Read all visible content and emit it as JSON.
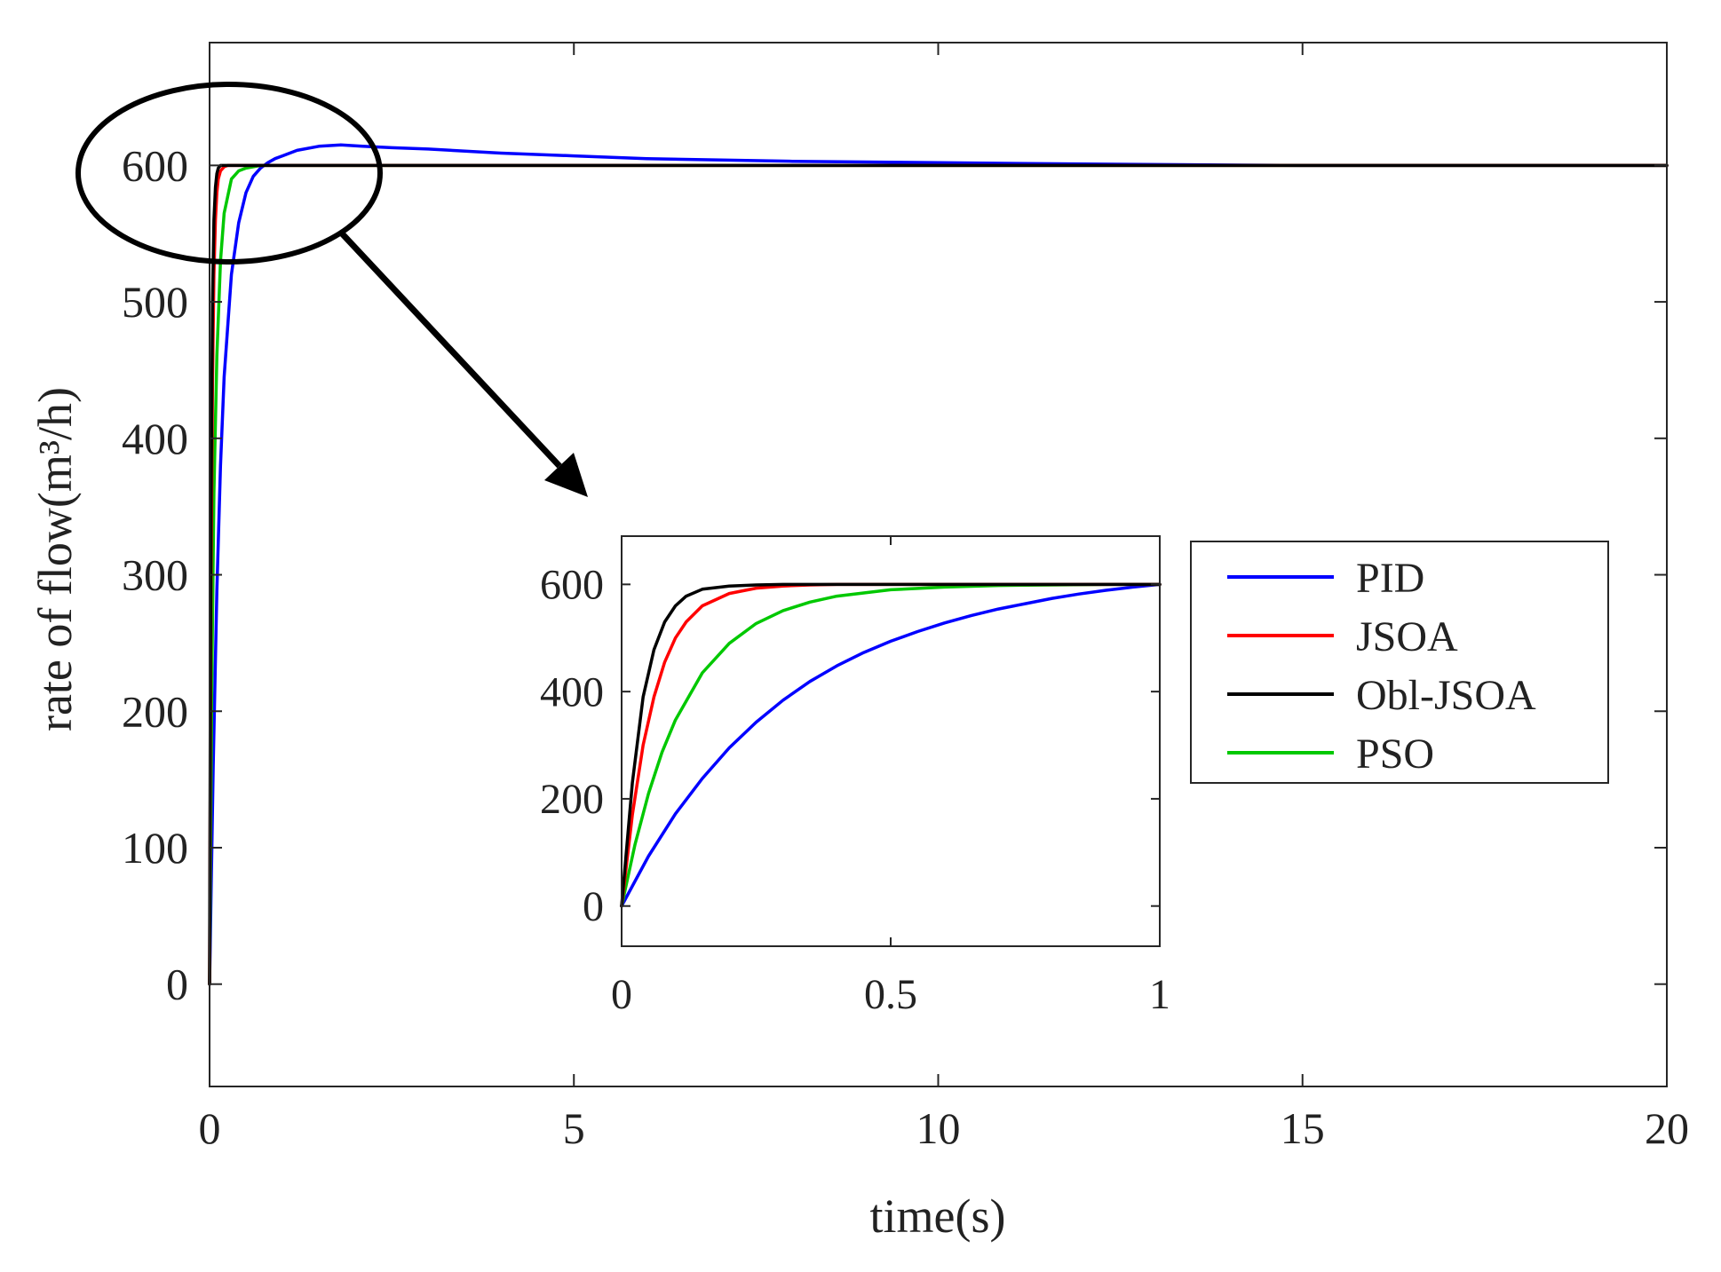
{
  "colors": {
    "PID": "#0000ff",
    "JSOA": "#ff0000",
    "Obl-JSOA": "#000000",
    "PSO": "#00c800"
  },
  "chart_data": [
    {
      "id": "main",
      "type": "line",
      "title": "",
      "xlabel": "time(s)",
      "ylabel": "rate of flow(m³/h)",
      "xlim": [
        0,
        20
      ],
      "ylim": [
        -75,
        690
      ],
      "xticks": [
        0,
        5,
        10,
        15,
        20
      ],
      "xtick_labels": [
        "0",
        "5",
        "10",
        "15",
        "20"
      ],
      "yticks": [
        0,
        100,
        200,
        300,
        400,
        500,
        600
      ],
      "ytick_labels": [
        "0",
        "100",
        "200",
        "300",
        "400",
        "500",
        "600"
      ],
      "grid": false,
      "series": [
        {
          "name": "PID",
          "x": [
            0,
            0.05,
            0.1,
            0.15,
            0.2,
            0.3,
            0.4,
            0.5,
            0.6,
            0.7,
            0.8,
            0.9,
            1.0,
            1.2,
            1.5,
            1.8,
            2.1,
            2.5,
            3,
            4,
            5,
            6,
            8,
            10,
            12,
            15,
            20
          ],
          "y": [
            0,
            160,
            288,
            380,
            445,
            520,
            558,
            580,
            592,
            598,
            602,
            605,
            607,
            611,
            614,
            615,
            614,
            613,
            612,
            609,
            607,
            605,
            603,
            602,
            601,
            600,
            600
          ]
        },
        {
          "name": "JSOA",
          "x": [
            0,
            0.02,
            0.04,
            0.06,
            0.08,
            0.1,
            0.12,
            0.15,
            0.2,
            0.25,
            0.3,
            20
          ],
          "y": [
            0,
            290,
            440,
            520,
            560,
            580,
            590,
            596,
            599,
            600,
            600,
            600
          ]
        },
        {
          "name": "Obl-JSOA",
          "x": [
            0,
            0.01,
            0.02,
            0.04,
            0.06,
            0.08,
            0.1,
            0.12,
            0.15,
            0.2,
            20
          ],
          "y": [
            0,
            200,
            340,
            500,
            560,
            584,
            594,
            598,
            600,
            600,
            600
          ]
        },
        {
          "name": "PSO",
          "x": [
            0,
            0.03,
            0.06,
            0.1,
            0.15,
            0.2,
            0.3,
            0.4,
            0.5,
            0.7,
            1.0,
            20
          ],
          "y": [
            0,
            220,
            360,
            460,
            530,
            565,
            590,
            596,
            598,
            600,
            600,
            600
          ]
        }
      ],
      "legend": {
        "entries": [
          "PID",
          "JSOA",
          "Obl-JSOA",
          "PSO"
        ],
        "placement": "center-right"
      },
      "annotation": "ellipse around initial rise near y=600 with arrow pointing to inset"
    },
    {
      "id": "inset",
      "type": "line",
      "title": "",
      "xlabel": "",
      "ylabel": "",
      "xlim": [
        0,
        1
      ],
      "ylim": [
        -75,
        690
      ],
      "xticks": [
        0,
        0.5,
        1
      ],
      "xtick_labels": [
        "0",
        "0.5",
        "1"
      ],
      "yticks": [
        0,
        200,
        400,
        600
      ],
      "ytick_labels": [
        "0",
        "200",
        "400",
        "600"
      ],
      "grid": false,
      "series": [
        {
          "name": "PID",
          "x": [
            0,
            0.05,
            0.1,
            0.15,
            0.2,
            0.25,
            0.3,
            0.35,
            0.4,
            0.45,
            0.5,
            0.55,
            0.6,
            0.65,
            0.7,
            0.75,
            0.8,
            0.85,
            0.9,
            0.95,
            1.0
          ],
          "y": [
            0,
            93,
            172,
            238,
            295,
            343,
            384,
            419,
            448,
            473,
            494,
            512,
            528,
            542,
            554,
            564,
            574,
            582,
            589,
            595,
            600
          ]
        },
        {
          "name": "JSOA",
          "x": [
            0,
            0.02,
            0.04,
            0.06,
            0.08,
            0.1,
            0.12,
            0.15,
            0.2,
            0.25,
            0.3,
            0.35,
            0.4,
            0.5,
            1.0
          ],
          "y": [
            0,
            170,
            300,
            390,
            455,
            500,
            530,
            560,
            583,
            593,
            597,
            599,
            600,
            600,
            600
          ]
        },
        {
          "name": "Obl-JSOA",
          "x": [
            0,
            0.02,
            0.04,
            0.06,
            0.08,
            0.1,
            0.12,
            0.15,
            0.2,
            0.25,
            0.3,
            0.4,
            1.0
          ],
          "y": [
            0,
            230,
            390,
            478,
            530,
            560,
            578,
            591,
            597,
            599,
            600,
            600,
            600
          ]
        },
        {
          "name": "PSO",
          "x": [
            0,
            0.025,
            0.05,
            0.075,
            0.1,
            0.15,
            0.2,
            0.25,
            0.3,
            0.35,
            0.4,
            0.5,
            0.6,
            0.7,
            0.8,
            0.9,
            1.0
          ],
          "y": [
            0,
            115,
            210,
            287,
            347,
            435,
            490,
            527,
            551,
            567,
            578,
            590,
            595,
            598,
            599,
            600,
            600
          ]
        }
      ]
    }
  ]
}
